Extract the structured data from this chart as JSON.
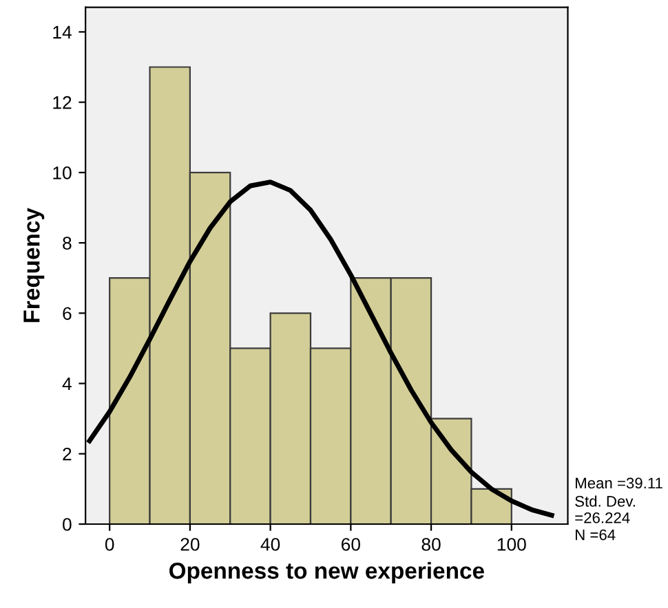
{
  "chart_data": {
    "type": "histogram",
    "xlabel": "Openness to new experience",
    "ylabel": "Frequency",
    "bins": [
      0,
      10,
      20,
      30,
      40,
      50,
      60,
      70,
      80,
      90,
      100
    ],
    "values": [
      7,
      13,
      10,
      5,
      6,
      5,
      7,
      7,
      3,
      1
    ],
    "color": "#d3ce97",
    "series": [
      {
        "type": "line",
        "color": "#000000",
        "x": [
          -5,
          0,
          5,
          10,
          15,
          20,
          25,
          30,
          35,
          40,
          45,
          50,
          55,
          60,
          65,
          70,
          75,
          80,
          85,
          90,
          95,
          100,
          105,
          110
        ],
        "values": [
          2.37,
          3.2,
          4.18,
          5.26,
          6.38,
          7.47,
          8.42,
          9.17,
          9.62,
          9.73,
          9.49,
          8.93,
          8.1,
          7.09,
          5.98,
          4.87,
          3.82,
          2.89,
          2.11,
          1.48,
          1.0,
          0.66,
          0.41,
          0.25
        ]
      }
    ],
    "xlim": [
      -6,
      114
    ],
    "ylim": [
      0,
      14.7
    ],
    "xticks": [
      0,
      20,
      40,
      60,
      80,
      100
    ],
    "yticks": [
      0,
      2,
      4,
      6,
      8,
      10,
      12,
      14
    ],
    "grid": false,
    "legend": false,
    "annotations": [
      "Mean =39.11",
      "Std. Dev. =26.224",
      "N =64"
    ]
  }
}
